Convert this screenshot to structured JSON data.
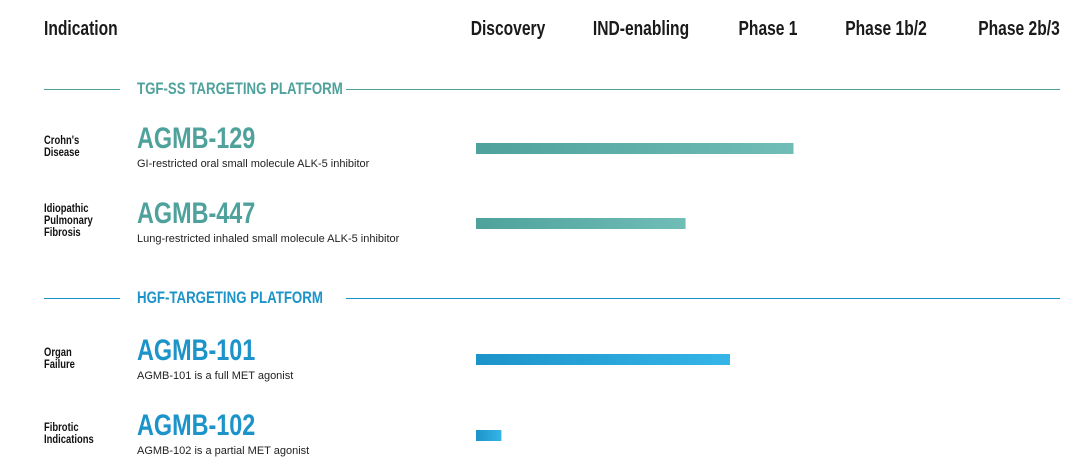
{
  "header": {
    "indication_label": "Indication",
    "phases": [
      "Discovery",
      "IND-enabling",
      "Phase 1",
      "Phase 1b/2",
      "Phase 2b/3"
    ]
  },
  "colors": {
    "tgf": "#4fa29c",
    "tgf_light": "#6fbdb6",
    "hgf": "#1c93c9",
    "hgf_light": "#35b5e8",
    "text": "#111111"
  },
  "platforms": [
    {
      "label": "TGF-ß TARGETING PLATFORM",
      "programs": [
        {
          "indication": [
            "Crohn's",
            "Disease"
          ],
          "name": "AGMB-129",
          "description": "GI-restricted oral small molecule ALK-5 inhibitor"
        },
        {
          "indication": [
            "Idiopathic",
            "Pulmonary",
            "Fibrosis"
          ],
          "name": "AGMB-447",
          "description": "Lung-restricted  inhaled small molecule ALK-5 inhibitor"
        }
      ]
    },
    {
      "label": "HGF-TARGETING PLATFORM",
      "programs": [
        {
          "indication": [
            "Organ",
            "Failure"
          ],
          "name": "AGMB-101",
          "description": "AGMB-101 is a full MET agonist"
        },
        {
          "indication": [
            "Fibrotic",
            "Indications"
          ],
          "name": "AGMB-102",
          "description": "AGMB-102 is a partial MET agonist"
        }
      ]
    }
  ],
  "chart_data": {
    "type": "bar",
    "orientation": "horizontal",
    "categories": [
      "AGMB-129",
      "AGMB-447",
      "AGMB-101",
      "AGMB-102"
    ],
    "x_stages": [
      "Discovery",
      "IND-enabling",
      "Phase 1",
      "Phase 1b/2",
      "Phase 2b/3"
    ],
    "values": [
      2.5,
      1.65,
      2.0,
      0.2
    ],
    "value_unit": "stages completed from start of Discovery",
    "xlim": [
      0,
      5
    ],
    "grid": false,
    "legend": "none"
  }
}
